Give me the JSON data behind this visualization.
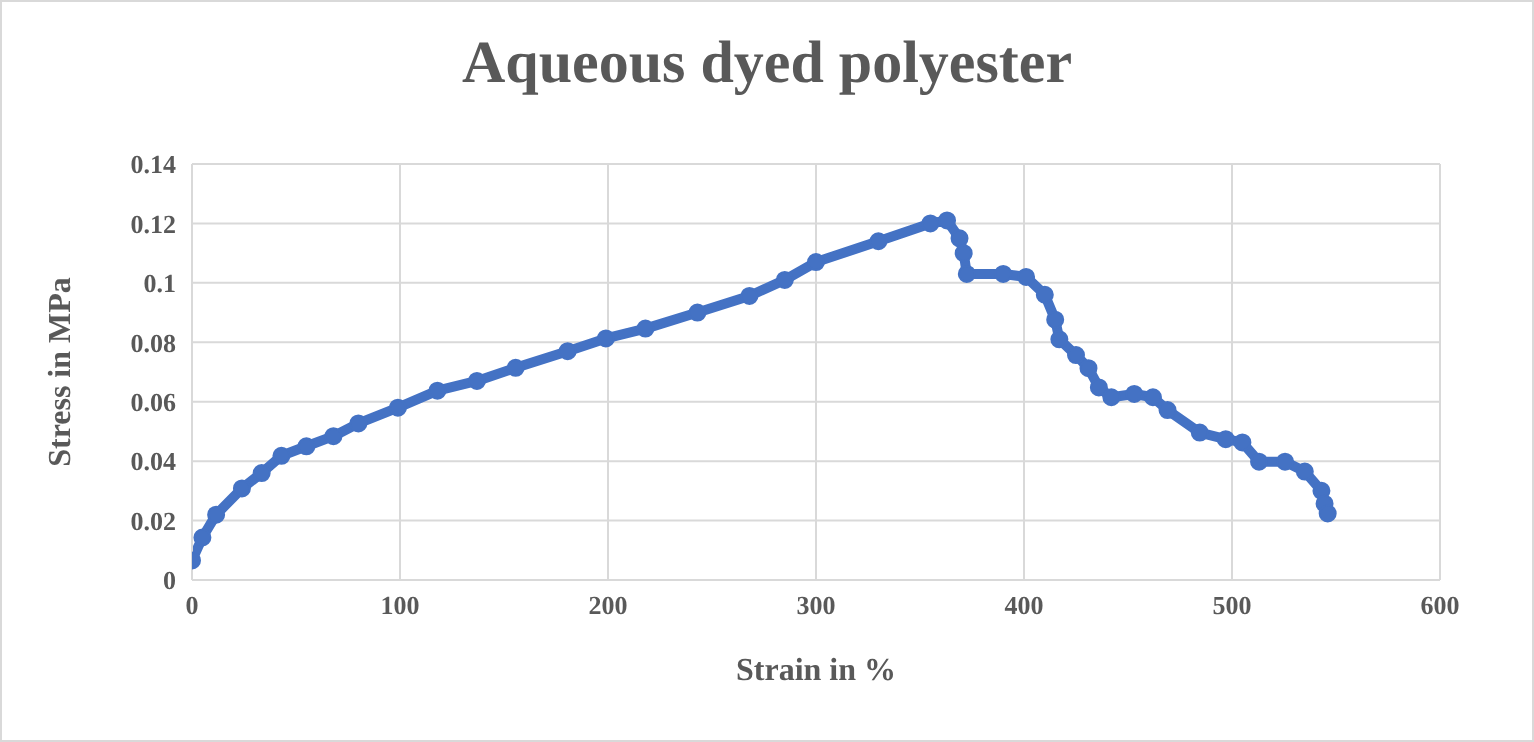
{
  "chart_data": {
    "type": "line",
    "title": "Aqueous dyed polyester",
    "xlabel": "Strain in %",
    "ylabel": "Stress in MPa",
    "xlim": [
      0,
      600
    ],
    "xticks": [
      0,
      100,
      200,
      300,
      400,
      500,
      600
    ],
    "ylim": [
      0,
      0.14
    ],
    "yticks": [
      0,
      0.02,
      0.04,
      0.06,
      0.08,
      0.1,
      0.12,
      0.14
    ],
    "grid": true,
    "marker": "circle",
    "line_style": "solid",
    "series": [
      {
        "color": "#4472c4",
        "x": [
          0,
          5,
          11.6,
          24,
          33.5,
          43,
          55,
          68,
          80,
          99,
          118,
          137,
          155.6,
          180.6,
          199,
          218,
          243,
          268,
          285,
          300,
          330,
          355,
          363,
          369,
          371,
          372.5,
          390,
          401,
          410,
          415,
          417,
          425,
          431,
          436,
          442,
          453,
          462,
          469,
          484.5,
          497,
          505,
          513,
          525.5,
          535,
          543,
          544.5,
          546
        ],
        "values": [
          0.0066,
          0.0143,
          0.022,
          0.0308,
          0.036,
          0.0418,
          0.045,
          0.0484,
          0.0527,
          0.058,
          0.0637,
          0.067,
          0.0714,
          0.077,
          0.0813,
          0.0846,
          0.09,
          0.0956,
          0.101,
          0.107,
          0.114,
          0.12,
          0.121,
          0.115,
          0.11,
          0.103,
          0.103,
          0.102,
          0.096,
          0.0876,
          0.081,
          0.0757,
          0.0713,
          0.0648,
          0.0615,
          0.0626,
          0.0615,
          0.0572,
          0.0496,
          0.0474,
          0.0463,
          0.0398,
          0.0398,
          0.0365,
          0.03,
          0.0257,
          0.0224
        ]
      }
    ]
  }
}
